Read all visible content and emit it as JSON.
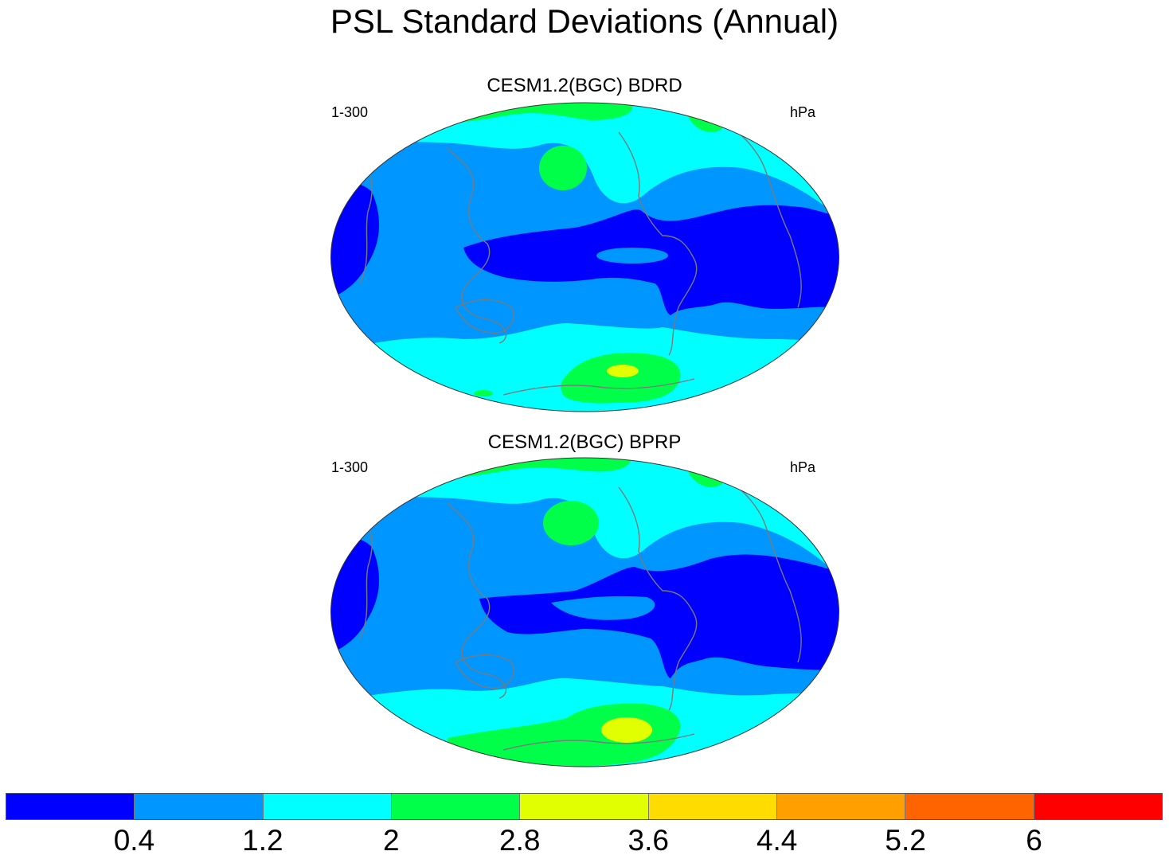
{
  "title": "PSL Standard Deviations (Annual)",
  "panels": [
    {
      "title": "CESM1.2(BGC) BDRD",
      "left_label": "1-300",
      "right_label": "hPa"
    },
    {
      "title": "CESM1.2(BGC) BPRP",
      "left_label": "1-300",
      "right_label": "hPa"
    }
  ],
  "colorbar": {
    "colors": [
      "#0000ff",
      "#0096ff",
      "#00ffff",
      "#00ff48",
      "#e1ff00",
      "#ffdc00",
      "#ffa000",
      "#ff6400",
      "#ff0000"
    ],
    "labels": [
      "0.4",
      "1.2",
      "2",
      "2.8",
      "3.6",
      "4.4",
      "5.2",
      "6"
    ]
  },
  "style": {
    "coast_color": "#7a7a7a"
  }
}
